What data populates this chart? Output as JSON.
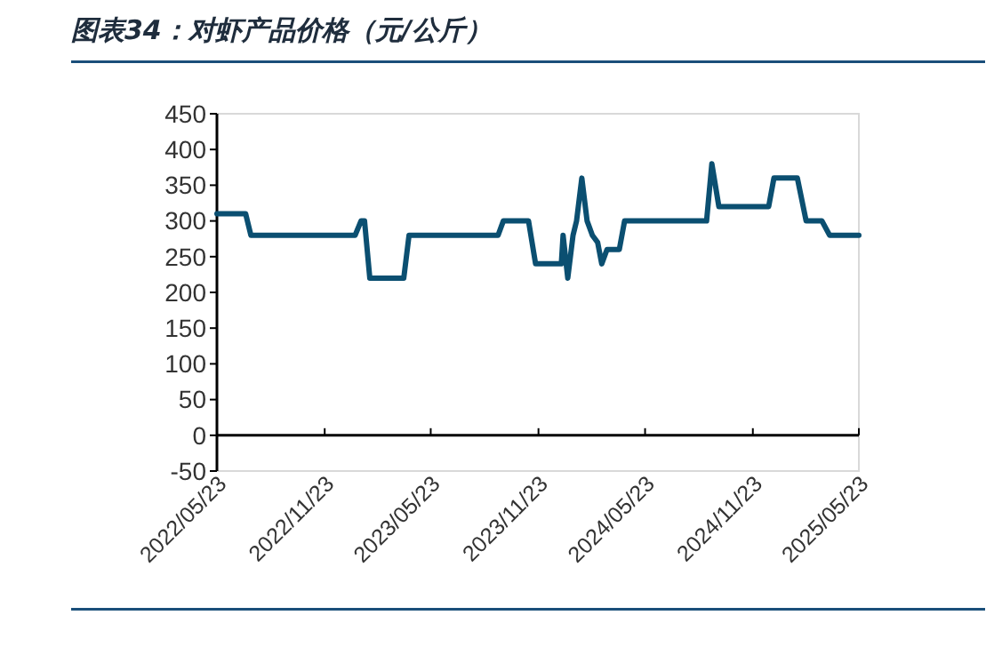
{
  "chart_data": {
    "type": "line",
    "title": "图表34：对虾产品价格（元/公斤）",
    "x": [
      "2022-05-23",
      "2022-07-11",
      "2022-07-20",
      "2023-01-14",
      "2023-01-24",
      "2023-01-30",
      "2023-02-08",
      "2023-04-07",
      "2023-04-16",
      "2023-09-15",
      "2023-09-24",
      "2023-11-06",
      "2023-11-18",
      "2024-01-01",
      "2024-01-04",
      "2024-01-12",
      "2024-01-21",
      "2024-01-27",
      "2024-02-05",
      "2024-02-14",
      "2024-02-23",
      "2024-03-03",
      "2024-03-10",
      "2024-03-19",
      "2024-04-09",
      "2024-04-18",
      "2024-09-05",
      "2024-09-14",
      "2024-09-26",
      "2024-12-20",
      "2024-12-29",
      "2025-02-07",
      "2025-02-22",
      "2025-03-21",
      "2025-04-03",
      "2025-05-23"
    ],
    "series": [
      {
        "color": "#0b4f71",
        "values": [
          310,
          310,
          280,
          280,
          300,
          300,
          220,
          220,
          280,
          280,
          300,
          300,
          240,
          240,
          280,
          220,
          280,
          300,
          360,
          300,
          280,
          270,
          240,
          260,
          260,
          300,
          300,
          380,
          320,
          320,
          360,
          360,
          300,
          300,
          280,
          280
        ]
      }
    ],
    "xlim": [
      "2022-05-23",
      "2025-05-23"
    ],
    "xticks": [
      {
        "value": "2022-05-23",
        "label": "2022/05/23"
      },
      {
        "value": "2022-11-23",
        "label": "2022/11/23"
      },
      {
        "value": "2023-05-23",
        "label": "2023/05/23"
      },
      {
        "value": "2023-11-23",
        "label": "2023/11/23"
      },
      {
        "value": "2024-05-23",
        "label": "2024/05/23"
      },
      {
        "value": "2024-11-23",
        "label": "2024/11/23"
      },
      {
        "value": "2025-05-23",
        "label": "2025/05/23"
      }
    ],
    "ylim": [
      -50,
      450
    ],
    "yticks": [
      -50,
      0,
      50,
      100,
      150,
      200,
      250,
      300,
      350,
      400,
      450
    ],
    "marker": "none",
    "line_style": "solid"
  }
}
